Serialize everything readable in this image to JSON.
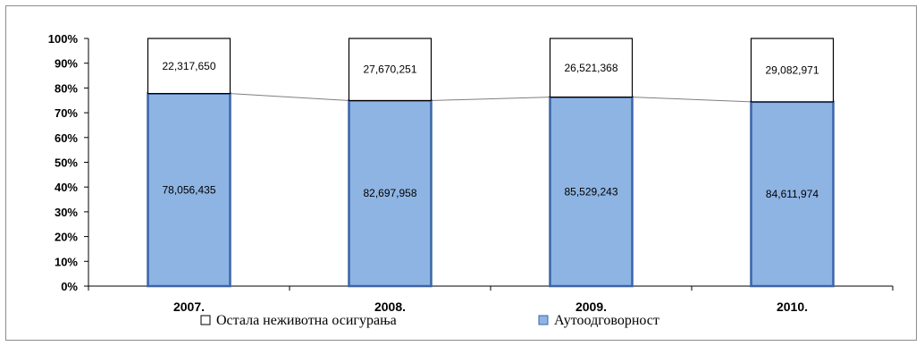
{
  "chart_data": {
    "type": "bar",
    "stacked": "percent",
    "categories": [
      "2007.",
      "2008.",
      "2009.",
      "2010."
    ],
    "series": [
      {
        "name": "Аутоодговорност",
        "values": [
          78056435,
          82697958,
          85529243,
          84611974
        ],
        "labels": [
          "78,056,435",
          "82,697,958",
          "85,529,243",
          "84,611,974"
        ],
        "color": "#8eb4e3"
      },
      {
        "name": "Остала неживотна осигурања",
        "values": [
          22317650,
          27670251,
          26521368,
          29082971
        ],
        "labels": [
          "22,317,650",
          "27,670,251",
          "26,521,368",
          "29,082,971"
        ],
        "color": "#ffffff"
      }
    ],
    "y_ticks": [
      "0%",
      "10%",
      "20%",
      "30%",
      "40%",
      "50%",
      "60%",
      "70%",
      "80%",
      "90%",
      "100%"
    ],
    "ylim": [
      0,
      100
    ],
    "series_lines": true,
    "grid": false,
    "legend_position": "bottom",
    "title": "",
    "xlabel": "",
    "ylabel": "",
    "colors": {
      "bar_border": "#000000",
      "blue_border": "#3b64a8",
      "axis": "#000000",
      "series_line": "#7f7f7f"
    }
  }
}
